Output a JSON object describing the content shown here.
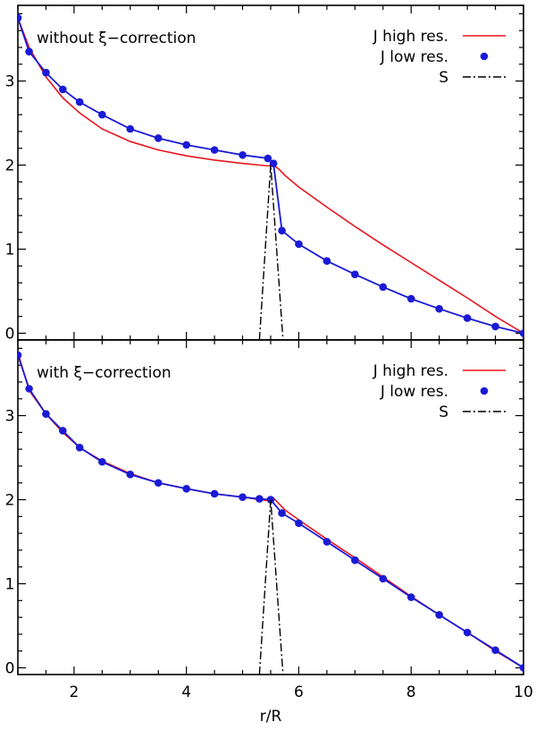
{
  "chart_data": {
    "type": "line",
    "xlabel": "r/R",
    "xlim": [
      1,
      10
    ],
    "x_ticks": [
      2,
      4,
      6,
      8,
      10
    ],
    "colors": {
      "high": "#e8141c",
      "low": "#1a1ad6",
      "source": "#000000"
    },
    "panels": [
      {
        "title": "without ξ−correction",
        "ylim": [
          -0.08,
          3.9
        ],
        "y_ticks": [
          0,
          1,
          2,
          3
        ],
        "legend": [
          {
            "label": "J high res.",
            "style": "line"
          },
          {
            "label": "J low res.",
            "style": "dot"
          },
          {
            "label": "S",
            "style": "dashdot"
          }
        ],
        "series": [
          {
            "name": "J high res.",
            "x": [
              1.0,
              1.2,
              1.5,
              1.8,
              2.1,
              2.5,
              3.0,
              3.5,
              4.0,
              4.5,
              5.0,
              5.3,
              5.45,
              5.55,
              5.65,
              5.75,
              6.0,
              6.5,
              7.0,
              7.5,
              8.0,
              8.5,
              9.0,
              9.5,
              10.0
            ],
            "y": [
              3.75,
              3.4,
              3.05,
              2.8,
              2.62,
              2.43,
              2.28,
              2.18,
              2.11,
              2.06,
              2.02,
              2.0,
              1.99,
              2.0,
              1.95,
              1.88,
              1.74,
              1.5,
              1.27,
              1.05,
              0.84,
              0.63,
              0.42,
              0.2,
              0.0
            ]
          },
          {
            "name": "J low res.",
            "x": [
              1.0,
              1.2,
              1.5,
              1.8,
              2.1,
              2.5,
              3.0,
              3.5,
              4.0,
              4.5,
              5.0,
              5.45,
              5.55,
              5.7,
              6.0,
              6.5,
              7.0,
              7.5,
              8.0,
              8.5,
              9.0,
              9.5,
              10.0
            ],
            "y": [
              3.75,
              3.35,
              3.1,
              2.9,
              2.75,
              2.6,
              2.43,
              2.32,
              2.24,
              2.18,
              2.12,
              2.08,
              2.02,
              1.22,
              1.06,
              0.86,
              0.7,
              0.55,
              0.41,
              0.29,
              0.18,
              0.08,
              0.0
            ]
          },
          {
            "name": "S",
            "x": [
              5.3,
              5.5,
              5.72
            ],
            "y": [
              -0.08,
              2.0,
              -0.08
            ]
          }
        ]
      },
      {
        "title": "with ξ−correction",
        "ylim": [
          -0.08,
          3.9
        ],
        "y_ticks": [
          0,
          1,
          2,
          3
        ],
        "legend": [
          {
            "label": "J high res.",
            "style": "line"
          },
          {
            "label": "J low res.",
            "style": "dot"
          },
          {
            "label": "S",
            "style": "dashdot"
          }
        ],
        "series": [
          {
            "name": "J high res.",
            "x": [
              1.0,
              1.2,
              1.5,
              1.8,
              2.1,
              2.5,
              3.0,
              3.5,
              4.0,
              4.5,
              5.0,
              5.3,
              5.45,
              5.55,
              5.65,
              5.75,
              6.0,
              6.5,
              7.0,
              7.5,
              8.0,
              8.5,
              9.0,
              9.5,
              10.0
            ],
            "y": [
              3.75,
              3.3,
              3.02,
              2.8,
              2.62,
              2.46,
              2.31,
              2.2,
              2.13,
              2.07,
              2.03,
              2.0,
              1.99,
              2.02,
              1.95,
              1.88,
              1.76,
              1.53,
              1.31,
              1.08,
              0.85,
              0.63,
              0.42,
              0.2,
              0.0
            ]
          },
          {
            "name": "J low res.",
            "x": [
              1.0,
              1.2,
              1.5,
              1.8,
              2.1,
              2.5,
              3.0,
              3.5,
              4.0,
              4.5,
              5.0,
              5.3,
              5.5,
              5.7,
              6.0,
              6.5,
              7.0,
              7.5,
              8.0,
              8.5,
              9.0,
              9.5,
              10.0
            ],
            "y": [
              3.72,
              3.32,
              3.02,
              2.82,
              2.62,
              2.45,
              2.3,
              2.2,
              2.13,
              2.07,
              2.03,
              2.01,
              2.0,
              1.84,
              1.72,
              1.5,
              1.28,
              1.06,
              0.84,
              0.63,
              0.42,
              0.21,
              0.0
            ]
          },
          {
            "name": "S",
            "x": [
              5.3,
              5.5,
              5.72
            ],
            "y": [
              -0.08,
              2.0,
              -0.08
            ]
          }
        ]
      }
    ]
  }
}
